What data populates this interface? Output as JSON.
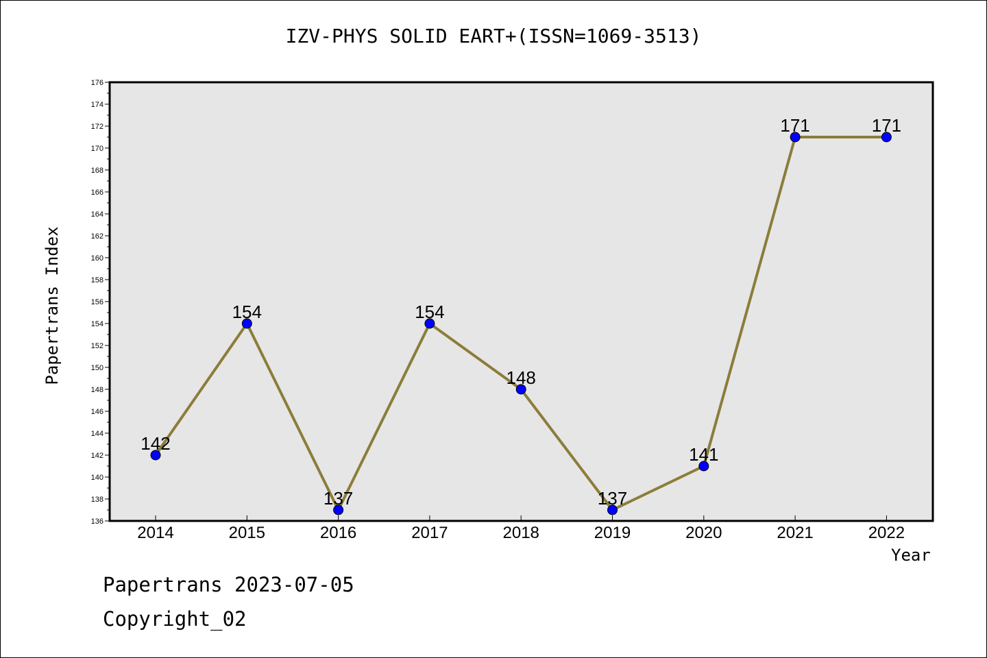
{
  "title": "IZV-PHYS SOLID EART+(ISSN=1069-3513)",
  "footer": {
    "line1": "Papertrans 2023-07-05",
    "line2": "Copyright_02"
  },
  "colors": {
    "line": "#8B7D3A",
    "marker": "#0000FF",
    "plot_bg": "#E6E6E6"
  },
  "chart_data": {
    "type": "line",
    "title": "IZV-PHYS SOLID EART+(ISSN=1069-3513)",
    "xlabel": "Year",
    "ylabel": "Papertrans Index",
    "categories": [
      "2014",
      "2015",
      "2016",
      "2017",
      "2018",
      "2019",
      "2020",
      "2021",
      "2022"
    ],
    "values": [
      142,
      154,
      137,
      154,
      148,
      137,
      141,
      171,
      171
    ],
    "ylim": [
      136,
      176
    ],
    "yticks": [
      136,
      138,
      140,
      142,
      144,
      146,
      148,
      150,
      152,
      154,
      156,
      158,
      160,
      162,
      164,
      166,
      168,
      170,
      172,
      174,
      176
    ],
    "grid": false,
    "legend": "none"
  }
}
